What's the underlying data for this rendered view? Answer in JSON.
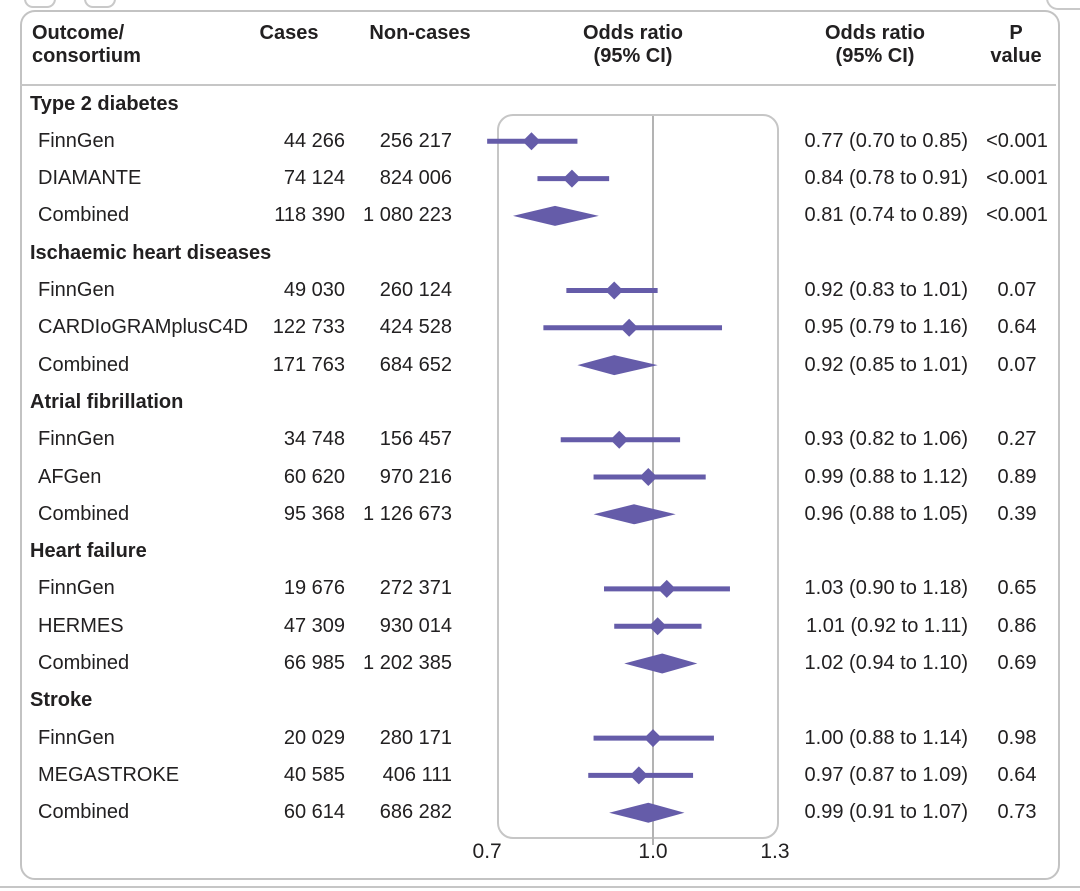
{
  "header": {
    "col_outcome": "Outcome/\nconsortium",
    "col_cases": "Cases",
    "col_noncases": "Non-cases",
    "col_or_plot": "Odds ratio\n(95% CI)",
    "col_or_text": "Odds ratio\n(95% CI)",
    "col_p": "P\nvalue"
  },
  "colors": {
    "marker_purple": "#655CA9",
    "text": "#222021",
    "frame_gray": "#c6c6c6",
    "reference_gray": "#b3b3b3"
  },
  "chart_data": {
    "type": "forest",
    "x_axis": {
      "scale": "log",
      "ticks": [
        0.7,
        1.0,
        1.3
      ],
      "tick_labels": [
        "0.7",
        "1.0",
        "1.3"
      ],
      "reference_line": 1.0,
      "range": [
        0.7,
        1.3
      ]
    },
    "columns": [
      "Outcome/consortium",
      "Cases",
      "Non-cases",
      "Odds ratio (95% CI)",
      "Odds ratio (95% CI)",
      "P value"
    ],
    "groups": [
      {
        "outcome": "Type 2 diabetes",
        "rows": [
          {
            "consortium": "FinnGen",
            "cases": "44 266",
            "noncases": "256 217",
            "or": 0.77,
            "lo": 0.7,
            "hi": 0.85,
            "or_text": "0.77 (0.70 to 0.85)",
            "p": "<0.001",
            "combined": false
          },
          {
            "consortium": "DIAMANTE",
            "cases": "74 124",
            "noncases": "824 006",
            "or": 0.84,
            "lo": 0.78,
            "hi": 0.91,
            "or_text": "0.84 (0.78 to 0.91)",
            "p": "<0.001",
            "combined": false
          },
          {
            "consortium": "Combined",
            "cases": "118 390",
            "noncases": "1 080 223",
            "or": 0.81,
            "lo": 0.74,
            "hi": 0.89,
            "or_text": "0.81 (0.74 to 0.89)",
            "p": "<0.001",
            "combined": true
          }
        ]
      },
      {
        "outcome": "Ischaemic heart diseases",
        "rows": [
          {
            "consortium": "FinnGen",
            "cases": "49 030",
            "noncases": "260 124",
            "or": 0.92,
            "lo": 0.83,
            "hi": 1.01,
            "or_text": "0.92 (0.83 to 1.01)",
            "p": "0.07",
            "combined": false
          },
          {
            "consortium": "CARDIoGRAMplusC4D",
            "cases": "122 733",
            "noncases": "424 528",
            "or": 0.95,
            "lo": 0.79,
            "hi": 1.16,
            "or_text": "0.95 (0.79 to 1.16)",
            "p": "0.64",
            "combined": false
          },
          {
            "consortium": "Combined",
            "cases": "171 763",
            "noncases": "684 652",
            "or": 0.92,
            "lo": 0.85,
            "hi": 1.01,
            "or_text": "0.92 (0.85 to 1.01)",
            "p": "0.07",
            "combined": true
          }
        ]
      },
      {
        "outcome": "Atrial fibrillation",
        "rows": [
          {
            "consortium": "FinnGen",
            "cases": "34 748",
            "noncases": "156 457",
            "or": 0.93,
            "lo": 0.82,
            "hi": 1.06,
            "or_text": "0.93 (0.82 to 1.06)",
            "p": "0.27",
            "combined": false
          },
          {
            "consortium": "AFGen",
            "cases": "60 620",
            "noncases": "970 216",
            "or": 0.99,
            "lo": 0.88,
            "hi": 1.12,
            "or_text": "0.99 (0.88 to 1.12)",
            "p": "0.89",
            "combined": false
          },
          {
            "consortium": "Combined",
            "cases": "95 368",
            "noncases": "1 126 673",
            "or": 0.96,
            "lo": 0.88,
            "hi": 1.05,
            "or_text": "0.96 (0.88 to 1.05)",
            "p": "0.39",
            "combined": true
          }
        ]
      },
      {
        "outcome": "Heart failure",
        "rows": [
          {
            "consortium": "FinnGen",
            "cases": "19 676",
            "noncases": "272 371",
            "or": 1.03,
            "lo": 0.9,
            "hi": 1.18,
            "or_text": "1.03 (0.90 to 1.18)",
            "p": "0.65",
            "combined": false
          },
          {
            "consortium": "HERMES",
            "cases": "47 309",
            "noncases": "930 014",
            "or": 1.01,
            "lo": 0.92,
            "hi": 1.11,
            "or_text": "1.01 (0.92 to 1.11)",
            "p": "0.86",
            "combined": false
          },
          {
            "consortium": "Combined",
            "cases": "66 985",
            "noncases": "1 202 385",
            "or": 1.02,
            "lo": 0.94,
            "hi": 1.1,
            "or_text": "1.02 (0.94 to 1.10)",
            "p": "0.69",
            "combined": true
          }
        ]
      },
      {
        "outcome": "Stroke",
        "rows": [
          {
            "consortium": "FinnGen",
            "cases": "20 029",
            "noncases": "280 171",
            "or": 1.0,
            "lo": 0.88,
            "hi": 1.14,
            "or_text": "1.00 (0.88 to 1.14)",
            "p": "0.98",
            "combined": false
          },
          {
            "consortium": "MEGASTROKE",
            "cases": "40 585",
            "noncases": "406 111",
            "or": 0.97,
            "lo": 0.87,
            "hi": 1.09,
            "or_text": "0.97 (0.87 to 1.09)",
            "p": "0.64",
            "combined": false
          },
          {
            "consortium": "Combined",
            "cases": "60 614",
            "noncases": "686 282",
            "or": 0.99,
            "lo": 0.91,
            "hi": 1.07,
            "or_text": "0.99 (0.91 to 1.07)",
            "p": "0.73",
            "combined": true
          }
        ]
      }
    ]
  }
}
